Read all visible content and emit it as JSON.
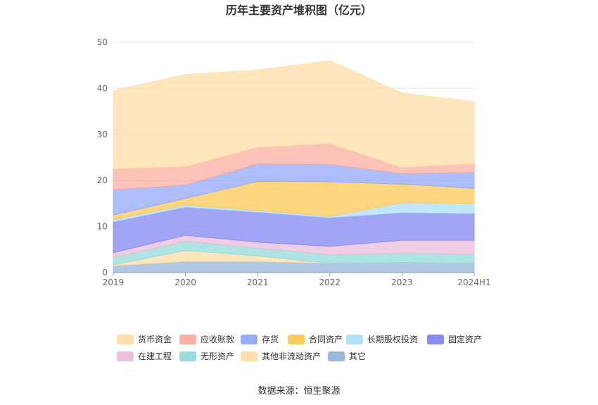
{
  "chart_data": {
    "type": "area",
    "stacked": true,
    "title": "历年主要资产堆积图（亿元）",
    "source_label": "数据来源：恒生聚源",
    "categories": [
      "2019",
      "2020",
      "2021",
      "2022",
      "2023",
      "2024H1"
    ],
    "ylim": [
      0,
      50
    ],
    "yticks": [
      0,
      10,
      20,
      30,
      40,
      50
    ],
    "grid": true,
    "legend_position": "bottom",
    "series": [
      {
        "name": "其它",
        "color": "#8eb0d8",
        "values": [
          1.5,
          2.4,
          2.4,
          2.0,
          2.2,
          2.0
        ]
      },
      {
        "name": "其他非流动资产",
        "color": "#fddba0",
        "values": [
          0.2,
          2.4,
          1.2,
          0.0,
          0.0,
          0.0
        ]
      },
      {
        "name": "无形资产",
        "color": "#8bd8d8",
        "values": [
          1.6,
          2.0,
          1.7,
          1.9,
          2.0,
          2.0
        ]
      },
      {
        "name": "在建工程",
        "color": "#e8b8d8",
        "values": [
          1.0,
          1.3,
          1.3,
          1.8,
          2.8,
          3.0
        ]
      },
      {
        "name": "固定资产",
        "color": "#7b7ff0",
        "values": [
          6.7,
          6.1,
          6.5,
          6.2,
          6.0,
          5.8
        ]
      },
      {
        "name": "长期股权投资",
        "color": "#a9ddf8",
        "values": [
          0.5,
          0.5,
          0.4,
          0.3,
          2.2,
          2.2
        ]
      },
      {
        "name": "合同资产",
        "color": "#fdc44a",
        "values": [
          1.0,
          1.4,
          6.3,
          7.5,
          4.0,
          3.3
        ]
      },
      {
        "name": "存货",
        "color": "#8aa3f8",
        "values": [
          5.5,
          2.9,
          3.8,
          3.8,
          2.3,
          3.4
        ]
      },
      {
        "name": "应收账款",
        "color": "#fca89a",
        "values": [
          4.5,
          4.0,
          3.6,
          4.5,
          1.3,
          2.0
        ]
      },
      {
        "name": "货币资金",
        "color": "#fddba0",
        "values": [
          17.0,
          20.0,
          16.8,
          18.0,
          16.2,
          13.4
        ]
      }
    ],
    "legend_order": [
      "货币资金",
      "应收账款",
      "存货",
      "合同资产",
      "长期股权投资",
      "固定资产",
      "在建工程",
      "无形资产",
      "其他非流动资产",
      "其它"
    ]
  }
}
